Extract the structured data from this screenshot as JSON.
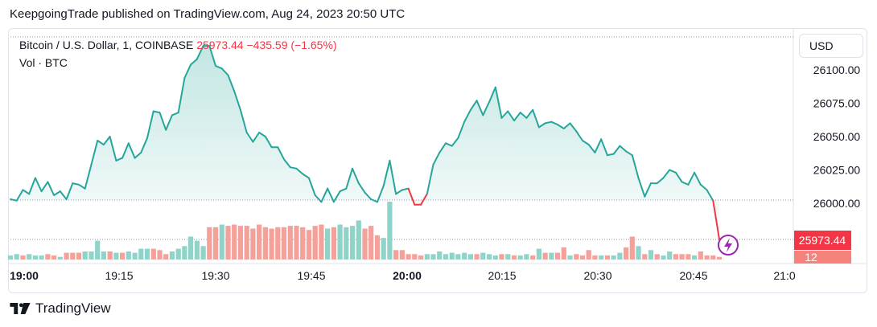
{
  "header": {
    "publish_line": "KeepgoingTrade published on TradingView.com, Aug 24, 2023 20:50 UTC"
  },
  "legend": {
    "symbol": "Bitcoin / U.S. Dollar, 1, COINBASE",
    "last": "25973.44",
    "change": "−435.59 (−1.65%)",
    "volume_label": "Vol · BTC"
  },
  "currency_button": "USD",
  "footer": {
    "brand": "TradingView"
  },
  "colors": {
    "up": "#26a69a",
    "down": "#f23645",
    "up_vol": "#8fd3c9",
    "down_vol": "#f6a09a",
    "lightning": "#9c27b0"
  },
  "icons": {
    "lightning": "lightning-icon",
    "logo": "tradingview-logo-icon"
  },
  "chart_data": {
    "type": "area",
    "x_axis": {
      "tick_labels": [
        "19:00",
        "19:15",
        "19:30",
        "19:45",
        "20:00",
        "20:15",
        "20:30",
        "20:45",
        "21:0"
      ],
      "bold_ticks": [
        "19:00",
        "20:00"
      ]
    },
    "y_axis": {
      "tick_labels": [
        "26100.00",
        "26075.00",
        "26050.00",
        "26025.00",
        "26000.00"
      ],
      "ticks": [
        26100,
        26075,
        26050,
        26025,
        26000
      ],
      "range": [
        25971,
        26122
      ]
    },
    "last_price_label": "25973.44",
    "volume_label_partial": "12",
    "series": [
      {
        "values": [
          26003,
          26002,
          26010,
          26007,
          26019,
          26009,
          26016,
          26006,
          26009,
          26003,
          26015,
          26014,
          26011,
          26029,
          26047,
          26044,
          26050,
          26032,
          26034,
          26045,
          26034,
          26038,
          26049,
          26069,
          26068,
          26055,
          26066,
          26068,
          26094,
          26104,
          26108,
          26118,
          26118,
          26103,
          26101,
          26096,
          26084,
          26070,
          26053,
          26046,
          26053,
          26050,
          26042,
          26042,
          26033,
          26027,
          26026,
          26022,
          26019,
          26006,
          26001,
          26011,
          26001,
          26009,
          26011,
          26026,
          26015,
          26008,
          26003,
          26001,
          26013,
          26032,
          26007,
          26010,
          26011,
          25999,
          25999,
          26007,
          26029,
          26038,
          26045,
          26043,
          26049,
          26061,
          26070,
          26077,
          26066,
          26076,
          26087,
          26064,
          26069,
          26062,
          26068,
          26064,
          26070,
          26057,
          26060,
          26061,
          26059,
          26056,
          26060,
          26054,
          26047,
          26044,
          26038,
          26048,
          26036,
          26037,
          26043,
          26039,
          26036,
          26019,
          26005,
          26015,
          26015,
          26019,
          26025,
          26023,
          26016,
          26014,
          26023,
          26014,
          26010,
          26002,
          25973
        ]
      }
    ],
    "volume": [
      3,
      4,
      3,
      4,
      3,
      3,
      4,
      3,
      2,
      5,
      5,
      5,
      6,
      6,
      14,
      6,
      6,
      5,
      5,
      6,
      5,
      8,
      8,
      8,
      7,
      4,
      6,
      8,
      10,
      17,
      14,
      10,
      24,
      24,
      26,
      25,
      26,
      25,
      25,
      23,
      26,
      24,
      23,
      24,
      24,
      25,
      25,
      24,
      22,
      25,
      26,
      23,
      24,
      26,
      24,
      25,
      29,
      23,
      25,
      18,
      16,
      43,
      7,
      7,
      4,
      4,
      3,
      4,
      4,
      6,
      4,
      5,
      4,
      5,
      4,
      4,
      5,
      4,
      3,
      4,
      4,
      3,
      3,
      4,
      3,
      8,
      5,
      5,
      5,
      9,
      3,
      4,
      3,
      7,
      3,
      3,
      3,
      3,
      5,
      9,
      17,
      10,
      4,
      7,
      4,
      3,
      6,
      4,
      4,
      4,
      3,
      6,
      3,
      3,
      2
    ],
    "volume_up": [
      true,
      true,
      false,
      true,
      true,
      true,
      false,
      false,
      true,
      false,
      false,
      false,
      true,
      true,
      true,
      true,
      false,
      true,
      false,
      true,
      true,
      true,
      true,
      false,
      false,
      false,
      true,
      true,
      true,
      true,
      true,
      true,
      false,
      false,
      true,
      false,
      false,
      false,
      false,
      false,
      false,
      false,
      false,
      false,
      false,
      false,
      false,
      false,
      false,
      false,
      false,
      true,
      false,
      true,
      true,
      true,
      true,
      false,
      false,
      false,
      true,
      true,
      false,
      false,
      false,
      false,
      false,
      true,
      true,
      true,
      true,
      true,
      true,
      true,
      true,
      false,
      true,
      true,
      true,
      false,
      true,
      false,
      true,
      true,
      false,
      true,
      false,
      true,
      false,
      false,
      true,
      false,
      false,
      false,
      false,
      true,
      false,
      true,
      true,
      false,
      false,
      true,
      false,
      true,
      false,
      true,
      true,
      false,
      false,
      false,
      true,
      false,
      false,
      false,
      false
    ]
  }
}
